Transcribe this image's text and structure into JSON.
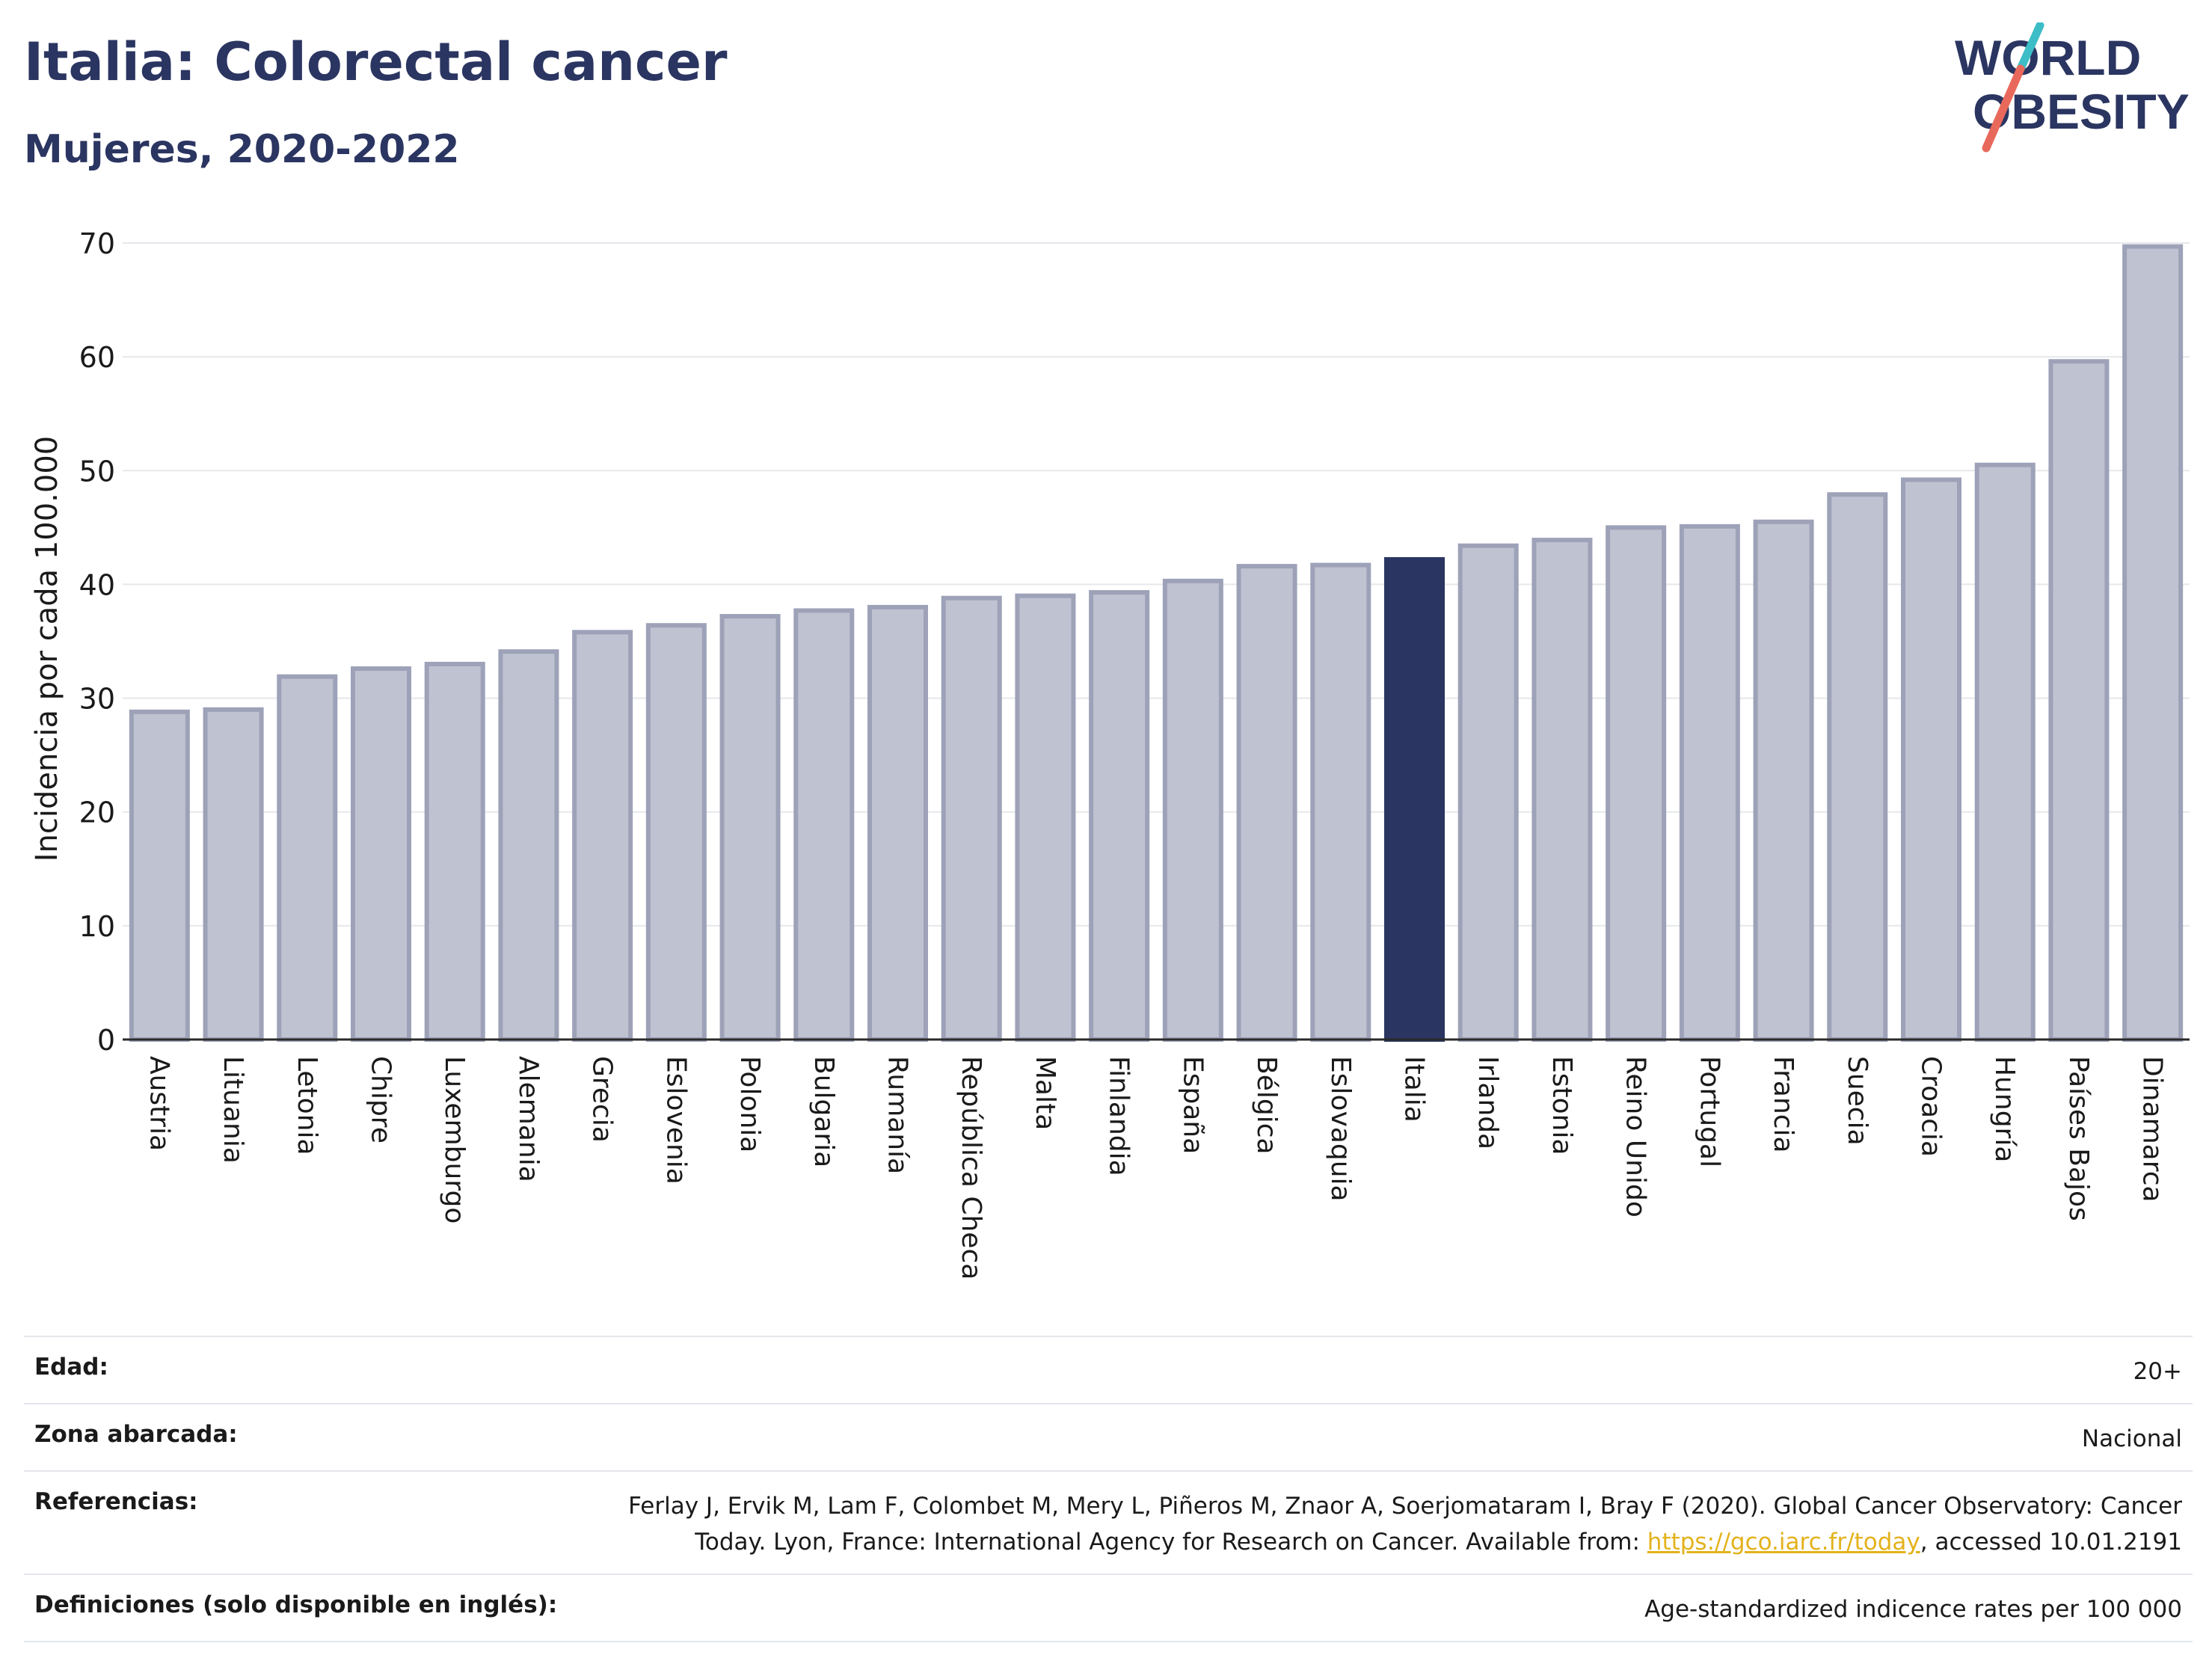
{
  "header": {
    "title": "Italia: Colorectal cancer",
    "subtitle": "Mujeres, 2020-2022"
  },
  "logo": {
    "line1": "WORLD",
    "line2": "OBESITY",
    "slash_colors": [
      "#3dbdc6",
      "#e8695b"
    ]
  },
  "colors": {
    "bar_default": "#bfc2d1",
    "bar_default_border": "#9da2b8",
    "bar_highlight": "#2b3561",
    "axis_text": "#1a1a1a",
    "grid": "#e6e8ec",
    "title": "#2b3561"
  },
  "chart_data": {
    "type": "bar",
    "ylabel": "Incidencia por cada 100.000",
    "ylim": [
      0,
      70
    ],
    "yticks": [
      0,
      10,
      20,
      30,
      40,
      50,
      60,
      70
    ],
    "grid": true,
    "highlight": "Italia",
    "categories": [
      "Austria",
      "Lituania",
      "Letonia",
      "Chipre",
      "Luxemburgo",
      "Alemania",
      "Grecia",
      "Eslovenia",
      "Polonia",
      "Bulgaria",
      "Rumanía",
      "República Checa",
      "Malta",
      "Finlandia",
      "España",
      "Bélgica",
      "Eslovaquia",
      "Italia",
      "Irlanda",
      "Estonia",
      "Reino Unido",
      "Portugal",
      "Francia",
      "Suecia",
      "Croacia",
      "Hungría",
      "Países Bajos",
      "Dinamarca"
    ],
    "values": [
      28.8,
      29.0,
      31.9,
      32.6,
      33.0,
      34.1,
      35.8,
      36.4,
      37.2,
      37.7,
      38.0,
      38.8,
      39.0,
      39.3,
      40.3,
      41.6,
      41.7,
      42.2,
      43.4,
      43.9,
      45.0,
      45.1,
      45.5,
      47.9,
      49.2,
      50.5,
      59.6,
      69.7
    ]
  },
  "info": {
    "edad_label": "Edad:",
    "edad_value": "20+",
    "zona_label": "Zona abarcada:",
    "zona_value": "Nacional",
    "ref_label": "Referencias:",
    "ref_text_1": "Ferlay J, Ervik M, Lam F, Colombet M, Mery L, Piñeros M, Znaor A, Soerjomataram I, Bray F (2020). Global Cancer Observatory: Cancer Today. Lyon, France: International Agency for Research on Cancer. Available from: ",
    "ref_link": "https://gco.iarc.fr/today",
    "ref_text_2": ", accessed 10.01.2191",
    "def_label": "Definiciones (solo disponible en inglés):",
    "def_value": "Age-standardized indicence rates per 100 000"
  }
}
